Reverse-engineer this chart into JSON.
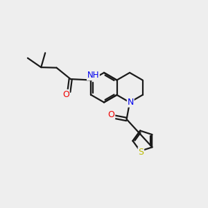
{
  "bg_color": "#eeeeee",
  "bond_color": "#1a1a1a",
  "bond_width": 1.6,
  "atom_colors": {
    "N": "#0000ee",
    "O": "#ee0000",
    "S": "#bbbb00",
    "H": "#4a8888"
  },
  "font_size": 8.5,
  "figsize": [
    3.0,
    3.0
  ],
  "dpi": 100,
  "ring_r": 0.72,
  "th_r": 0.52
}
